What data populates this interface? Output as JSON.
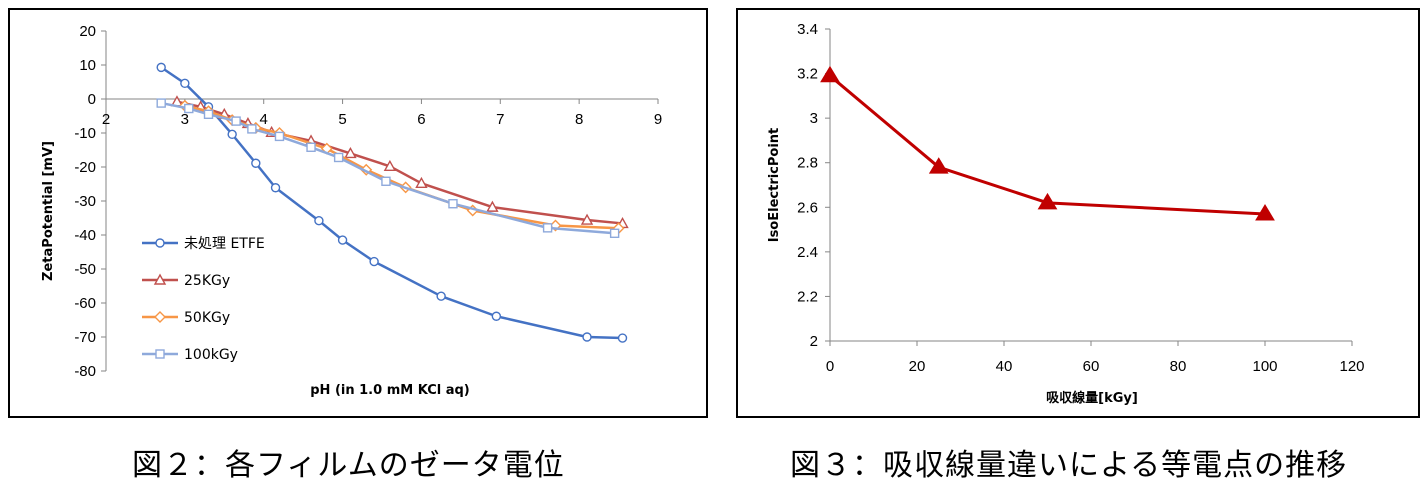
{
  "chart_data": [
    {
      "type": "line",
      "title": "",
      "xlabel": "pH (in 1.0 mM KCl aq)",
      "ylabel": "ZetaPotential [mV]",
      "xlim": [
        2,
        9
      ],
      "ylim": [
        -80,
        20
      ],
      "xticks": [
        "2",
        "3",
        "4",
        "5",
        "6",
        "7",
        "8",
        "9"
      ],
      "yticks": [
        "20",
        "10",
        "0",
        "-10",
        "-20",
        "-30",
        "-40",
        "-50",
        "-60",
        "-70",
        "-80"
      ],
      "grid": false,
      "legend": "left-bottom",
      "series": [
        {
          "name": "未処理 ETFE",
          "color": "#4472C4",
          "marker": "circle",
          "x": [
            2.7,
            3.0,
            3.3,
            3.6,
            3.9,
            4.15,
            4.7,
            5.0,
            5.4,
            6.25,
            6.95,
            8.1,
            8.55
          ],
          "y": [
            9.3,
            4.6,
            -2.3,
            -10.4,
            -18.9,
            -26.1,
            -35.8,
            -41.5,
            -47.8,
            -58.0,
            -63.9,
            -70.0,
            -70.3
          ]
        },
        {
          "name": "25KGy",
          "color": "#C0504D",
          "marker": "triangle",
          "x": [
            2.9,
            3.2,
            3.5,
            3.8,
            4.1,
            4.6,
            5.1,
            5.6,
            6.0,
            6.9,
            8.1,
            8.55
          ],
          "y": [
            -0.8,
            -2.3,
            -4.5,
            -7.2,
            -9.8,
            -12.3,
            -16.0,
            -19.8,
            -24.8,
            -31.8,
            -35.6,
            -36.6
          ]
        },
        {
          "name": "50KGy",
          "color": "#F79646",
          "marker": "diamond",
          "x": [
            3.0,
            3.3,
            3.6,
            3.9,
            4.2,
            4.8,
            5.3,
            5.8,
            6.65,
            7.7,
            8.5
          ],
          "y": [
            -2.0,
            -3.6,
            -6.2,
            -8.5,
            -10.0,
            -14.6,
            -20.8,
            -26.0,
            -32.8,
            -37.2,
            -38.0
          ]
        },
        {
          "name": "100kGy",
          "color": "#8EA9DB",
          "marker": "square",
          "x": [
            2.7,
            3.05,
            3.3,
            3.65,
            3.85,
            4.2,
            4.6,
            4.95,
            5.55,
            6.4,
            7.6,
            8.45
          ],
          "y": [
            -1.2,
            -2.8,
            -4.5,
            -6.5,
            -8.8,
            -11.0,
            -14.2,
            -17.2,
            -24.2,
            -30.8,
            -37.9,
            -39.5
          ]
        }
      ]
    },
    {
      "type": "line",
      "title": "",
      "xlabel": "吸収線量[kGy]",
      "ylabel": "IsoElectricPoint",
      "xlim": [
        0,
        120
      ],
      "ylim": [
        2,
        3.4
      ],
      "xticks": [
        "0",
        "20",
        "40",
        "60",
        "80",
        "100",
        "120"
      ],
      "yticks": [
        "3.4",
        "3.2",
        "3",
        "2.8",
        "2.6",
        "2.4",
        "2.2",
        "2"
      ],
      "grid": false,
      "legend": "none",
      "series": [
        {
          "color": "#C00000",
          "marker": "triangle",
          "x": [
            0,
            25,
            50,
            100
          ],
          "y": [
            3.19,
            2.78,
            2.62,
            2.57
          ]
        }
      ]
    }
  ],
  "captions": {
    "left": "図２：各フィルムのゼータ電位",
    "right": "図３：吸収線量違いによる等電点の推移"
  }
}
